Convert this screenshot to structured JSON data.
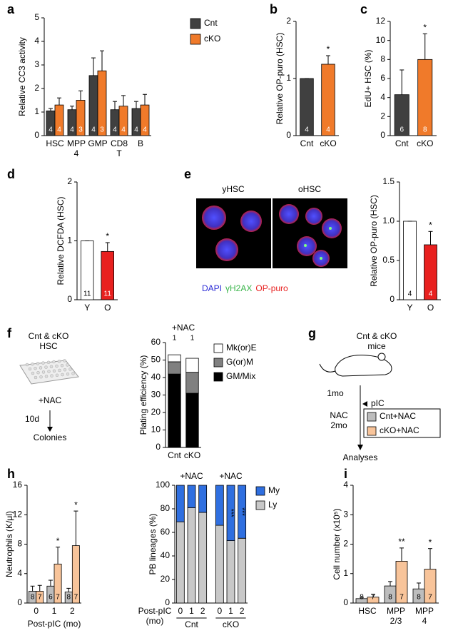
{
  "chart_data": [
    {
      "panel": "a",
      "type": "bar",
      "ylabel": "Relative CC3 activity",
      "ylim": [
        0,
        5
      ],
      "yticks": [
        0,
        1,
        2,
        3,
        4,
        5
      ],
      "categories": [
        "HSC",
        "MPP\n4",
        "GMP",
        "CD8\nT",
        "B"
      ],
      "legend": "right",
      "series": [
        {
          "name": "Cnt",
          "color": "#404040",
          "values": [
            1.05,
            1.1,
            2.55,
            1.1,
            1.15
          ],
          "errors": [
            0.1,
            0.15,
            0.75,
            0.35,
            0.3
          ],
          "n": [
            4,
            4,
            4,
            4,
            4
          ]
        },
        {
          "name": "cKO",
          "color": "#f07a2a",
          "values": [
            1.3,
            1.5,
            2.75,
            1.25,
            1.3
          ],
          "errors": [
            0.3,
            0.4,
            0.85,
            0.45,
            0.45
          ],
          "n": [
            4,
            3,
            3,
            4,
            4
          ]
        }
      ]
    },
    {
      "panel": "b",
      "type": "bar",
      "ylabel": "Relative OP-puro (HSC)",
      "ylim": [
        0,
        2
      ],
      "yticks": [
        0,
        1,
        2
      ],
      "categories": [
        "Cnt",
        "cKO"
      ],
      "series": [
        {
          "colors": [
            "#404040",
            "#f07a2a"
          ],
          "values": [
            1.0,
            1.25
          ],
          "errors": [
            0,
            0.15
          ],
          "n": [
            4,
            4
          ],
          "stars": [
            null,
            "*"
          ]
        }
      ]
    },
    {
      "panel": "c",
      "type": "bar",
      "ylabel": "EdU+ HSC (%)",
      "ylim": [
        0,
        12
      ],
      "yticks": [
        0,
        2,
        4,
        6,
        8,
        10,
        12
      ],
      "categories": [
        "Cnt",
        "cKO"
      ],
      "series": [
        {
          "colors": [
            "#404040",
            "#f07a2a"
          ],
          "values": [
            4.3,
            8.0
          ],
          "errors": [
            2.6,
            2.7
          ],
          "n": [
            6,
            8
          ],
          "stars": [
            null,
            "*"
          ]
        }
      ]
    },
    {
      "panel": "d",
      "type": "bar",
      "ylabel": "Relative DCFDA (HSC)",
      "ylim": [
        0,
        2
      ],
      "yticks": [
        0,
        1,
        2
      ],
      "categories": [
        "Y",
        "O"
      ],
      "series": [
        {
          "colors": [
            "#ffffff",
            "#e8201f"
          ],
          "values": [
            1.0,
            0.82
          ],
          "errors": [
            0,
            0.15
          ],
          "n": [
            11,
            11
          ],
          "stars": [
            null,
            "*"
          ]
        }
      ]
    },
    {
      "panel": "e",
      "type": "bar",
      "ylabel": "Relative OP-puro (HSC)",
      "ylim": [
        0,
        1.5
      ],
      "yticks": [
        0,
        0.5,
        {
          "value": 1,
          "label": "1.0"
        },
        1.5
      ],
      "images": [
        "yHSC",
        "oHSC"
      ],
      "stains": [
        {
          "name": "DAPI",
          "color": "#2b2bd6"
        },
        {
          "name": "γH2AX",
          "color": "#39b54a"
        },
        {
          "name": "OP-puro",
          "color": "#e8201f"
        }
      ],
      "categories": [
        "Y",
        "O"
      ],
      "series": [
        {
          "colors": [
            "#ffffff",
            "#e8201f"
          ],
          "values": [
            1.0,
            0.7
          ],
          "errors": [
            0,
            0.17
          ],
          "n": [
            4,
            4
          ],
          "stars": [
            null,
            "*"
          ]
        }
      ]
    },
    {
      "panel": "f",
      "type": "stacked_bar",
      "ylabel": "Plating efficiency (%)",
      "title": "+NAC",
      "ylim": [
        0,
        60
      ],
      "yticks": [
        0,
        10,
        20,
        30,
        40,
        50,
        60
      ],
      "diagram": [
        "Cnt & cKO\nHSC",
        "+NAC",
        "10d",
        "Colonies"
      ],
      "categories": [
        "Cnt",
        "cKO"
      ],
      "n": [
        1,
        1
      ],
      "series": [
        {
          "name": "GM/Mix",
          "color": "#000000",
          "values": [
            42,
            31
          ]
        },
        {
          "name": "G(or)M",
          "color": "#808080",
          "values": [
            7,
            12
          ]
        },
        {
          "name": "Mk(or)E",
          "color": "#ffffff",
          "values": [
            4,
            8
          ]
        }
      ]
    },
    {
      "panel": "g",
      "type": "diagram",
      "mice": "Cnt & cKO\nmice",
      "start": "1mo",
      "injection": "pIC",
      "treatment": "NAC\n2mo",
      "end": "Analyses",
      "legend": [
        {
          "name": "Cnt+NAC",
          "color": "#bdbdbd"
        },
        {
          "name": "cKO+NAC",
          "color": "#f8c49a"
        }
      ]
    },
    {
      "panel": "h",
      "type": "bar",
      "ylabel": "Neutrophils (K/μl)",
      "xlabel": "Post-pIC (mo)",
      "ylim": [
        0,
        16
      ],
      "yticks": [
        0,
        4,
        8,
        12,
        16
      ],
      "categories": [
        "0",
        "1",
        "2"
      ],
      "series": [
        {
          "color": "#bdbdbd",
          "values": [
            1.6,
            2.3,
            1.5
          ],
          "errors": [
            0.7,
            0.8,
            0.5
          ],
          "n": [
            8,
            6,
            8
          ]
        },
        {
          "color": "#f8c49a",
          "values": [
            1.6,
            5.3,
            7.8
          ],
          "errors": [
            0.8,
            2.3,
            4.7
          ],
          "n": [
            7,
            7,
            7
          ],
          "stars": [
            null,
            "*",
            "*"
          ]
        }
      ]
    },
    {
      "type": "stacked_bar",
      "ylabel": "PB lineages (%)",
      "xlabel": "Post-pIC\n(mo)",
      "ylim": [
        0,
        100
      ],
      "yticks": [
        0,
        20,
        40,
        60,
        80,
        100
      ],
      "categories": [
        "0",
        "1",
        "2",
        "0",
        "1",
        "2"
      ],
      "groups": [
        {
          "title": "+NAC",
          "label": "Cnt"
        },
        {
          "title": "+NAC",
          "label": "cKO"
        }
      ],
      "series": [
        {
          "name": "Ly",
          "color": "#c8c8c8",
          "values": [
            69,
            81,
            77,
            66,
            53,
            55
          ]
        },
        {
          "name": "My",
          "color": "#2f6fe0",
          "values": [
            31,
            19,
            23,
            34,
            47,
            45
          ],
          "stars": [
            null,
            null,
            null,
            null,
            "***",
            "***"
          ]
        }
      ]
    },
    {
      "panel": "i",
      "type": "bar",
      "ylabel": "Cell number (x10⁵)",
      "ylim": [
        0,
        4
      ],
      "yticks": [
        0,
        1,
        2,
        3,
        4
      ],
      "categories": [
        "HSC",
        "MPP\n2/3",
        "MPP\n4"
      ],
      "series": [
        {
          "color": "#bdbdbd",
          "values": [
            0.15,
            0.58,
            0.48
          ],
          "errors": [
            0.05,
            0.15,
            0.2
          ],
          "n": [
            8,
            8,
            8
          ]
        },
        {
          "color": "#f8c49a",
          "values": [
            0.2,
            1.42,
            1.15
          ],
          "errors": [
            0.1,
            0.45,
            0.7
          ],
          "n": [
            7,
            7,
            7
          ],
          "stars": [
            null,
            "**",
            "*"
          ]
        }
      ]
    }
  ]
}
